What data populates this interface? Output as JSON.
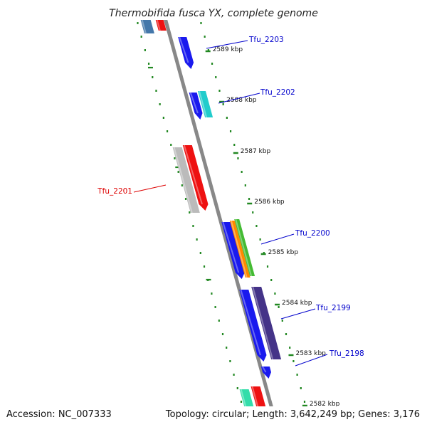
{
  "title": "Thermobifida fusca YX, complete genome",
  "accession": "Accession: NC_007333",
  "summary": "Topology: circular; Length: 3,642,249 bp; Genes: 3,176",
  "ticks": [
    "2589 kbp",
    "2588 kbp",
    "2587 kbp",
    "2586 kbp",
    "2585 kbp",
    "2584 kbp",
    "2583 kbp",
    "2582 kbp"
  ],
  "genes": [
    {
      "label": "Tfu_2203",
      "color": "#0000cc"
    },
    {
      "label": "Tfu_2202",
      "color": "#0000cc"
    },
    {
      "label": "Tfu_2201",
      "color": "#dd0000"
    },
    {
      "label": "Tfu_2200",
      "color": "#0000cc"
    },
    {
      "label": "Tfu_2199",
      "color": "#0000cc"
    },
    {
      "label": "Tfu_2198",
      "color": "#0000cc"
    }
  ],
  "colors": {
    "backbone": "#888888",
    "tick_mark": "#228822",
    "cds_blue": "#1a1aee",
    "cds_red": "#ee1111",
    "cds_gray": "#bbbbbb",
    "cds_cyan": "#22cccc",
    "cds_orange": "#ff8800",
    "cds_green": "#44bb33",
    "cds_purple": "#443388",
    "cds_steel": "#4477aa",
    "cds_mint": "#33ddaa"
  }
}
